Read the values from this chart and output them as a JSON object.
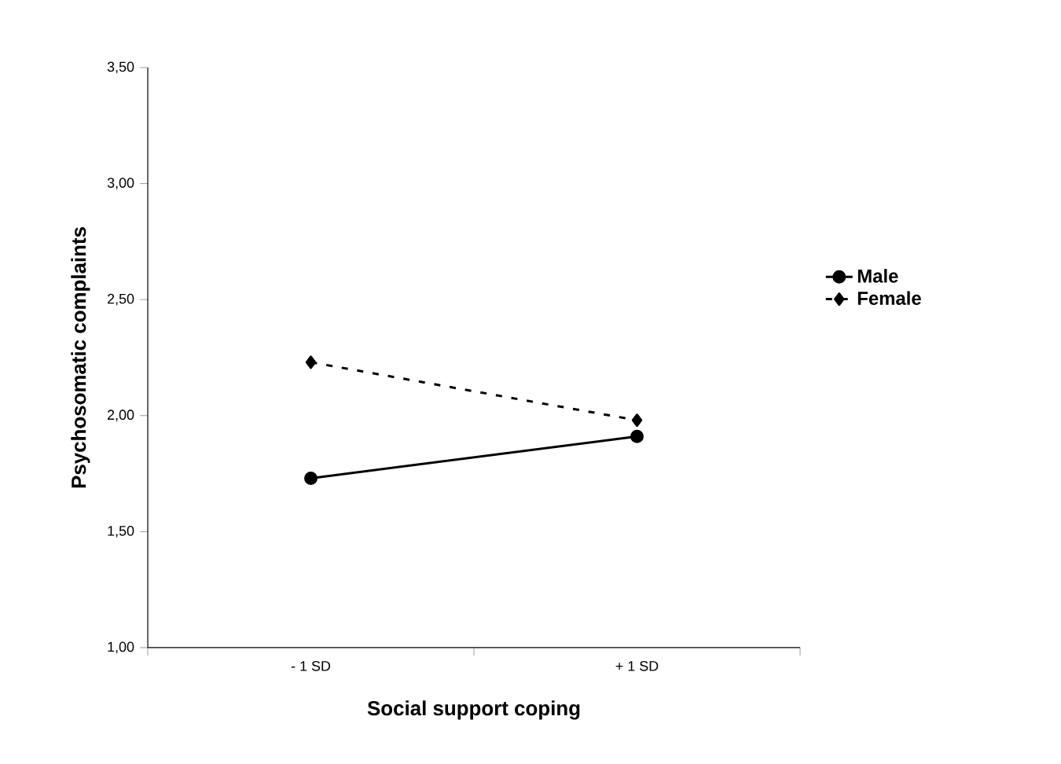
{
  "chart_data": {
    "type": "line",
    "xlabel": "Social support coping",
    "ylabel": "Psychosomatic complaints",
    "categories": [
      "- 1 SD",
      "+ 1 SD"
    ],
    "series": [
      {
        "name": "Male",
        "color": "#000000",
        "values": [
          1.73,
          1.91
        ],
        "marker": "circle",
        "line_style": "solid"
      },
      {
        "name": "Female",
        "color": "#000000",
        "values": [
          2.23,
          1.98
        ],
        "marker": "diamond",
        "line_style": "dashed"
      }
    ],
    "ylim": [
      1.0,
      3.5
    ],
    "yticks": [
      {
        "value": 1.0,
        "label": "1,00"
      },
      {
        "value": 1.5,
        "label": "1,50"
      },
      {
        "value": 2.0,
        "label": "2,00"
      },
      {
        "value": 2.5,
        "label": "2,50"
      },
      {
        "value": 3.0,
        "label": "3,00"
      },
      {
        "value": 3.5,
        "label": "3,50"
      }
    ],
    "grid": false,
    "legend": "right"
  }
}
